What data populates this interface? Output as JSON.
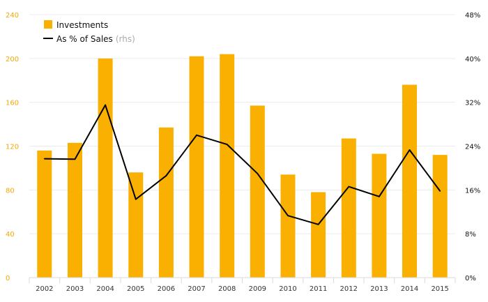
{
  "chart_data": {
    "type": "bar",
    "categories": [
      "2002",
      "2003",
      "2004",
      "2005",
      "2006",
      "2007",
      "2008",
      "2009",
      "2010",
      "2011",
      "2012",
      "2013",
      "2014",
      "2015"
    ],
    "series": [
      {
        "name": "Investments",
        "type": "bar",
        "axis": "left",
        "color": "#f9b000",
        "values": [
          116,
          123,
          200,
          96,
          137,
          202,
          204,
          157,
          94,
          78,
          127,
          113,
          176,
          112
        ]
      },
      {
        "name": "As % of Sales",
        "name_suffix": "(rhs)",
        "type": "line",
        "axis": "right",
        "color": "#000000",
        "values": [
          21.7,
          21.6,
          31.5,
          14.3,
          18.6,
          26.0,
          24.3,
          19.0,
          11.3,
          9.7,
          16.6,
          14.8,
          23.3,
          15.8
        ]
      }
    ],
    "y_left": {
      "ylim": [
        0,
        240
      ],
      "ticks": [
        0,
        40,
        80,
        120,
        160,
        200,
        240
      ],
      "tick_labels": [
        "0",
        "40",
        "80",
        "120",
        "160",
        "200",
        "240"
      ],
      "color": "#f5a800"
    },
    "y_right": {
      "ylim": [
        0,
        48
      ],
      "ticks": [
        0,
        8,
        16,
        24,
        32,
        40,
        48
      ],
      "tick_labels": [
        "0%",
        "8%",
        "16%",
        "24%",
        "32%",
        "40%",
        "48%"
      ],
      "color": "#111111"
    },
    "grid": true,
    "legend": {
      "position": "top-left",
      "entries": [
        {
          "label": "Investments",
          "suffix": ""
        },
        {
          "label": "As % of Sales",
          "suffix": "(rhs)"
        }
      ]
    },
    "title": "",
    "xlabel": "",
    "ylabel": ""
  }
}
